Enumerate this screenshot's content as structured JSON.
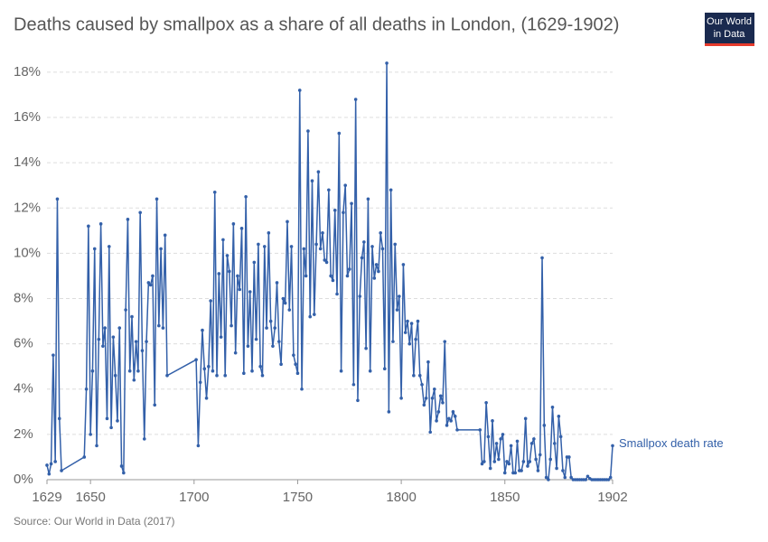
{
  "chart_data": {
    "type": "line",
    "title": "Deaths caused by smallpox as a share of all deaths in London, (1629-1902)",
    "source": "Source: Our World in Data (2017)",
    "logo": [
      "Our World",
      "in Data"
    ],
    "xlim": [
      1629,
      1902
    ],
    "xticks": [
      1629,
      1650,
      1700,
      1750,
      1800,
      1850,
      1902
    ],
    "ylim": [
      0,
      18.5
    ],
    "yticks": [
      {
        "value": 0,
        "label": "0%"
      },
      {
        "value": 2,
        "label": "2%"
      },
      {
        "value": 4,
        "label": "4%"
      },
      {
        "value": 6,
        "label": "6%"
      },
      {
        "value": 8,
        "label": "8%"
      },
      {
        "value": 10,
        "label": "10%"
      },
      {
        "value": 12,
        "label": "12%"
      },
      {
        "value": 14,
        "label": "14%"
      },
      {
        "value": 16,
        "label": "16%"
      },
      {
        "value": 18,
        "label": "18%"
      }
    ],
    "grid": true,
    "x": [
      1629,
      1630,
      1631,
      1632,
      1633,
      1634,
      1635,
      1636,
      1647,
      1648,
      1649,
      1650,
      1651,
      1652,
      1653,
      1654,
      1655,
      1656,
      1657,
      1658,
      1659,
      1660,
      1661,
      1662,
      1663,
      1664,
      1665,
      1666,
      1667,
      1668,
      1669,
      1670,
      1671,
      1672,
      1673,
      1674,
      1675,
      1676,
      1677,
      1678,
      1679,
      1680,
      1681,
      1682,
      1683,
      1684,
      1685,
      1686,
      1687,
      1701,
      1702,
      1703,
      1704,
      1705,
      1706,
      1707,
      1708,
      1709,
      1710,
      1711,
      1712,
      1713,
      1714,
      1715,
      1716,
      1717,
      1718,
      1719,
      1720,
      1721,
      1722,
      1723,
      1724,
      1725,
      1726,
      1727,
      1728,
      1729,
      1730,
      1731,
      1732,
      1733,
      1734,
      1735,
      1736,
      1737,
      1738,
      1739,
      1740,
      1741,
      1742,
      1743,
      1744,
      1745,
      1746,
      1747,
      1748,
      1749,
      1750,
      1751,
      1752,
      1753,
      1754,
      1755,
      1756,
      1757,
      1758,
      1759,
      1760,
      1761,
      1762,
      1763,
      1764,
      1765,
      1766,
      1767,
      1768,
      1769,
      1770,
      1771,
      1772,
      1773,
      1774,
      1775,
      1776,
      1777,
      1778,
      1779,
      1780,
      1781,
      1782,
      1783,
      1784,
      1785,
      1786,
      1787,
      1788,
      1789,
      1790,
      1791,
      1792,
      1793,
      1794,
      1795,
      1796,
      1797,
      1798,
      1799,
      1800,
      1801,
      1802,
      1803,
      1804,
      1805,
      1806,
      1807,
      1808,
      1809,
      1810,
      1811,
      1812,
      1813,
      1814,
      1815,
      1816,
      1817,
      1818,
      1819,
      1820,
      1821,
      1822,
      1823,
      1824,
      1825,
      1826,
      1827,
      1838,
      1839,
      1840,
      1841,
      1842,
      1843,
      1844,
      1845,
      1846,
      1847,
      1848,
      1849,
      1850,
      1851,
      1852,
      1853,
      1854,
      1855,
      1856,
      1857,
      1858,
      1859,
      1860,
      1861,
      1862,
      1863,
      1864,
      1865,
      1866,
      1867,
      1868,
      1869,
      1870,
      1871,
      1872,
      1873,
      1874,
      1875,
      1876,
      1877,
      1878,
      1879,
      1880,
      1881,
      1882,
      1883,
      1884,
      1885,
      1886,
      1887,
      1888,
      1889,
      1890,
      1891,
      1892,
      1893,
      1894,
      1895,
      1896,
      1897,
      1898,
      1899,
      1900,
      1901,
      1902
    ],
    "series": [
      {
        "name": "Smallpox death rate",
        "color": "#3360a9",
        "values": [
          0.64,
          0.25,
          0.7,
          5.5,
          0.8,
          12.4,
          2.7,
          0.4,
          1.0,
          4.0,
          11.2,
          2.0,
          4.8,
          10.2,
          1.5,
          6.2,
          11.3,
          5.9,
          6.7,
          2.7,
          10.3,
          2.3,
          6.3,
          4.6,
          2.6,
          6.7,
          0.6,
          0.3,
          7.5,
          11.5,
          4.8,
          7.2,
          4.4,
          6.1,
          4.8,
          11.8,
          5.7,
          1.8,
          6.1,
          8.7,
          8.6,
          9.0,
          3.3,
          12.4,
          6.8,
          10.2,
          6.7,
          10.8,
          4.6,
          5.3,
          1.5,
          4.3,
          6.6,
          4.9,
          3.6,
          5.0,
          7.9,
          4.8,
          12.7,
          4.6,
          9.1,
          6.3,
          10.6,
          4.6,
          9.9,
          9.2,
          6.8,
          11.3,
          5.6,
          9.0,
          8.4,
          11.1,
          4.7,
          12.5,
          5.9,
          8.3,
          4.8,
          9.6,
          6.2,
          10.4,
          5.0,
          4.6,
          10.3,
          6.7,
          10.9,
          7.0,
          5.9,
          6.7,
          8.7,
          6.1,
          5.1,
          8.0,
          7.8,
          11.4,
          7.5,
          10.3,
          5.5,
          5.1,
          4.7,
          17.2,
          4.0,
          10.2,
          9.0,
          15.4,
          7.2,
          13.2,
          7.3,
          10.4,
          13.6,
          10.2,
          10.9,
          9.7,
          9.6,
          12.8,
          9.0,
          8.8,
          11.9,
          8.2,
          15.3,
          4.8,
          11.8,
          13.0,
          9.0,
          9.3,
          12.2,
          4.2,
          16.8,
          3.5,
          8.1,
          9.8,
          10.5,
          5.8,
          12.4,
          4.8,
          10.3,
          8.9,
          9.5,
          9.2,
          10.9,
          10.2,
          4.9,
          18.4,
          3.0,
          12.8,
          6.1,
          10.4,
          7.5,
          8.1,
          3.6,
          9.5,
          6.5,
          7.0,
          6.0,
          6.9,
          4.6,
          6.2,
          7.0,
          4.6,
          4.2,
          3.3,
          3.6,
          5.2,
          2.1,
          3.6,
          4.0,
          2.6,
          3.0,
          3.7,
          3.4,
          6.1,
          2.4,
          2.7,
          2.6,
          3.0,
          2.8,
          2.2,
          2.2,
          0.7,
          0.8,
          3.4,
          1.9,
          0.5,
          2.6,
          0.8,
          1.6,
          0.9,
          1.8,
          2.0,
          0.3,
          0.8,
          0.7,
          1.5,
          0.3,
          0.3,
          1.7,
          0.4,
          0.4,
          0.8,
          2.7,
          0.6,
          0.8,
          1.6,
          1.8,
          0.9,
          0.4,
          1.1,
          9.8,
          2.4,
          0.1,
          0,
          0.9,
          3.2,
          1.6,
          0.5,
          2.8,
          1.9,
          0.4,
          0.1,
          1.0,
          1.0,
          0.1,
          0,
          0,
          0,
          0,
          0,
          0,
          0,
          0.15,
          0.05,
          0,
          0,
          0,
          0,
          0,
          0,
          0,
          0,
          0,
          0.1,
          1.5
        ]
      }
    ]
  }
}
